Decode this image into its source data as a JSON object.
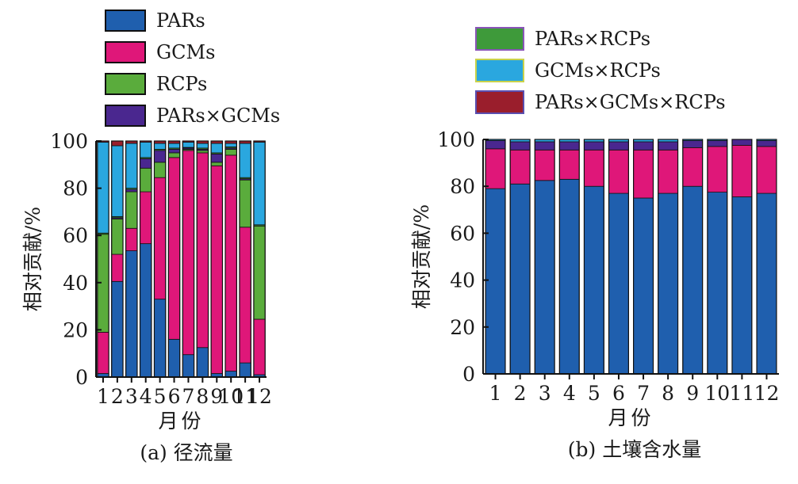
{
  "legend": [
    {
      "key": "PARs",
      "label": "PARs",
      "color": "#1f5fae",
      "border": "#101010"
    },
    {
      "key": "GCMs",
      "label": "GCMs",
      "color": "#df1779",
      "border": "#101010"
    },
    {
      "key": "RCPs",
      "label": "RCPs",
      "color": "#5aac3c",
      "border": "#101010"
    },
    {
      "key": "PARs_GCMs",
      "label": "PARs×GCMs",
      "color": "#4a278f",
      "border": "#101010"
    },
    {
      "key": "PARs_RCPs",
      "label": "PARs×RCPs",
      "color": "#3e9a3a",
      "border": "#8a55b8"
    },
    {
      "key": "GCMs_RCPs",
      "label": "GCMs×RCPs",
      "color": "#2aa7df",
      "border": "#c9d24a"
    },
    {
      "key": "PARs_GCMs_RCPs",
      "label": "PARs×GCMs×RCPs",
      "color": "#9a1e2c",
      "border": "#5a4fb0"
    }
  ],
  "chart_data": [
    {
      "type": "bar",
      "stacked": true,
      "caption": "(a) 径流量",
      "ylabel": "相对贡献/%",
      "xlabel": "月份",
      "ylim": [
        0,
        100
      ],
      "yticks": [
        0,
        20,
        40,
        60,
        80,
        100
      ],
      "categories": [
        "1",
        "2",
        "3",
        "4",
        "5",
        "6",
        "7",
        "8",
        "9",
        "10",
        "11",
        "12"
      ],
      "series": [
        {
          "name": "PARs",
          "values": [
            1.5,
            40.5,
            53.5,
            56.5,
            33,
            16,
            9.5,
            12.5,
            1.5,
            2.5,
            6,
            1
          ]
        },
        {
          "name": "GCMs",
          "values": [
            17.5,
            11.5,
            9.5,
            22,
            51.5,
            77,
            86.5,
            82.5,
            88,
            91.5,
            57.5,
            23.5
          ]
        },
        {
          "name": "RCPs",
          "values": [
            41.5,
            15,
            15.5,
            10,
            6.5,
            2,
            0.5,
            1,
            1.5,
            2.5,
            20,
            39.5
          ]
        },
        {
          "name": "PARs×GCMs",
          "values": [
            0,
            0.5,
            1,
            4,
            5,
            1.5,
            0.5,
            0.5,
            3.5,
            0.5,
            0.5,
            0
          ]
        },
        {
          "name": "PARs×RCPs",
          "values": [
            0.5,
            0.5,
            0.5,
            0.5,
            0.5,
            0.5,
            0.3,
            0.5,
            0.5,
            0.5,
            0.5,
            0.5
          ]
        },
        {
          "name": "GCMs×RCPs",
          "values": [
            38.5,
            30,
            19,
            6.5,
            2.5,
            2,
            2.2,
            2,
            4,
            1.5,
            14.5,
            35
          ]
        },
        {
          "name": "PARs×GCMs×RCPs",
          "values": [
            0.5,
            2,
            1,
            0.5,
            1,
            1,
            0.5,
            1,
            1,
            1,
            1,
            0.5
          ]
        }
      ]
    },
    {
      "type": "bar",
      "stacked": true,
      "caption": "(b) 土壤含水量",
      "ylabel": "相对贡献/%",
      "xlabel": "月份",
      "ylim": [
        0,
        100
      ],
      "yticks": [
        0,
        20,
        40,
        60,
        80,
        100
      ],
      "categories": [
        "1",
        "2",
        "3",
        "4",
        "5",
        "6",
        "7",
        "8",
        "9",
        "10",
        "11",
        "12"
      ],
      "series": [
        {
          "name": "PARs",
          "values": [
            79,
            81,
            82.5,
            83,
            80,
            77,
            75,
            77,
            80,
            77.5,
            75.5,
            77
          ]
        },
        {
          "name": "GCMs",
          "values": [
            17,
            14.5,
            13,
            12.5,
            15.5,
            18.5,
            20.5,
            18.5,
            16.5,
            19.5,
            22,
            20
          ]
        },
        {
          "name": "RCPs",
          "values": [
            0,
            0,
            0,
            0,
            0,
            0,
            0,
            0,
            0,
            0,
            0,
            0
          ]
        },
        {
          "name": "PARs×GCMs",
          "values": [
            3.5,
            3.5,
            3.5,
            3.5,
            3.5,
            3.5,
            3.5,
            3.5,
            3,
            2.5,
            2.5,
            2.5
          ]
        },
        {
          "name": "PARs×RCPs",
          "values": [
            0,
            0,
            0,
            0,
            0,
            0,
            0,
            0,
            0,
            0,
            0,
            0
          ]
        },
        {
          "name": "GCMs×RCPs",
          "values": [
            0.5,
            1,
            1,
            1,
            1,
            1,
            1,
            1,
            0.5,
            0.5,
            0,
            0.5
          ]
        },
        {
          "name": "PARs×GCMs×RCPs",
          "values": [
            0,
            0,
            0,
            0,
            0,
            0,
            0,
            0,
            0,
            0,
            0,
            0
          ]
        }
      ]
    }
  ]
}
